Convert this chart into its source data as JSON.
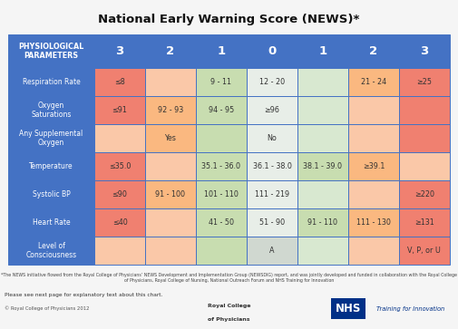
{
  "title": "National Early Warning Score (NEWS)*",
  "title_fontsize": 9.5,
  "header_bg": "#4472C4",
  "colors": {
    "red3": "#F08070",
    "orange2": "#FAB880",
    "yellow1": "#C8DDB0",
    "green0": "#D8E8D0",
    "white0": "#E8EEE8",
    "green1": "#C8DDB0",
    "peach": "#FAC8A8",
    "empty_peach": "#FAC8A8",
    "gray0": "#D0D8D0"
  },
  "footnote": "*The NEWS initiative flowed from the Royal College of Physicians’ NEWS Development and Implementation Group (NEWSDIG) report, and was jointly developed and funded in collaboration with the Royal College of Physicians, Royal College of Nursing, National Outreach Forum and NHS Training for Innovation",
  "footer_left": "Please see next page for explanatory text about this chart.",
  "copyright": "© Royal College of Physicians 2012",
  "row_labels": [
    "Respiration Rate",
    "Oxygen\nSaturations",
    "Any Supplemental\nOxygen",
    "Temperature",
    "Systolic BP",
    "Heart Rate",
    "Level of\nConsciousness"
  ],
  "table_data": [
    [
      "≤8",
      "",
      "9 - 11",
      "12 - 20",
      "",
      "21 - 24",
      "≥25"
    ],
    [
      "≤91",
      "92 - 93",
      "94 - 95",
      "≥96",
      "",
      "",
      ""
    ],
    [
      "",
      "Yes",
      "",
      "No",
      "",
      "",
      ""
    ],
    [
      "≤35.0",
      "",
      "35.1 - 36.0",
      "36.1 - 38.0",
      "38.1 - 39.0",
      "≥39.1",
      ""
    ],
    [
      "≤90",
      "91 - 100",
      "101 - 110",
      "111 - 219",
      "",
      "",
      "≥220"
    ],
    [
      "≤40",
      "",
      "41 - 50",
      "51 - 90",
      "91 - 110",
      "111 - 130",
      "≥131"
    ],
    [
      "",
      "",
      "",
      "A",
      "",
      "",
      "V, P, or U"
    ]
  ],
  "cell_colors": [
    [
      "red3",
      "peach",
      "yellow1",
      "white0",
      "green0",
      "orange2",
      "red3"
    ],
    [
      "red3",
      "orange2",
      "yellow1",
      "white0",
      "green0",
      "peach",
      "red3"
    ],
    [
      "peach",
      "orange2",
      "yellow1",
      "white0",
      "green0",
      "peach",
      "red3"
    ],
    [
      "red3",
      "peach",
      "yellow1",
      "white0",
      "yellow1",
      "orange2",
      "peach"
    ],
    [
      "red3",
      "orange2",
      "yellow1",
      "white0",
      "green0",
      "peach",
      "red3"
    ],
    [
      "red3",
      "peach",
      "yellow1",
      "white0",
      "yellow1",
      "orange2",
      "red3"
    ],
    [
      "peach",
      "peach",
      "yellow1",
      "gray0",
      "green0",
      "peach",
      "red3"
    ]
  ]
}
